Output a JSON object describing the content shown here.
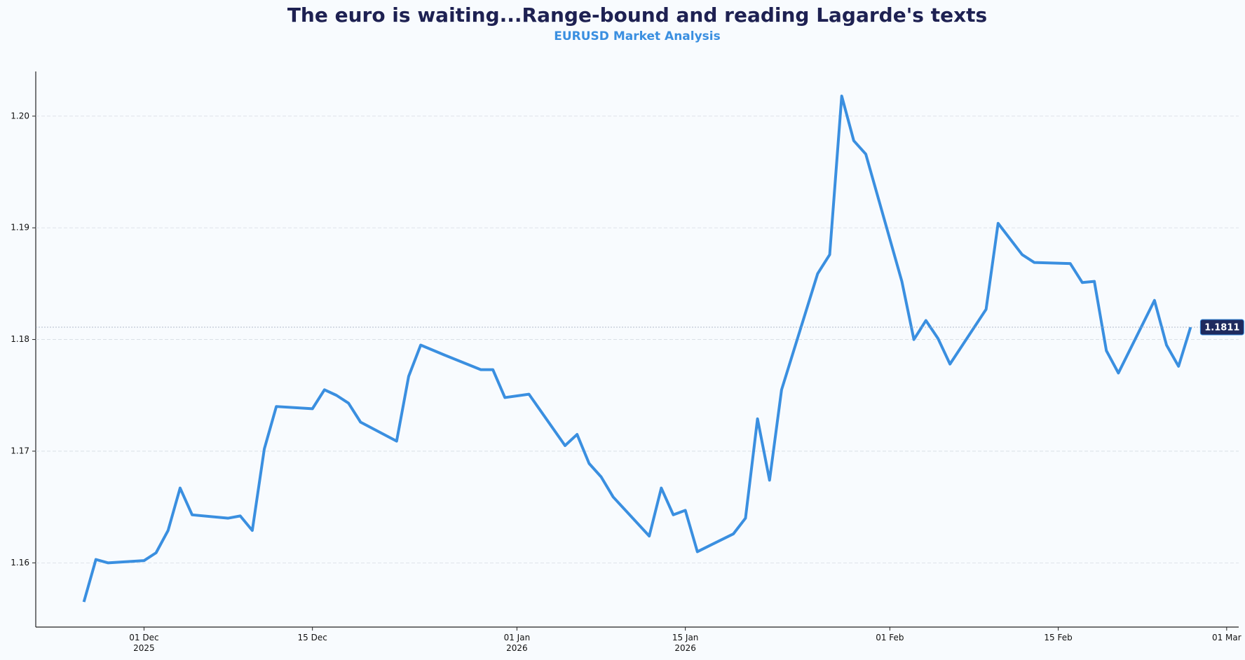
{
  "chart_data": {
    "type": "line",
    "title": "The euro is waiting...Range-bound and reading Lagarde's texts",
    "subtitle": "EURUSD Market Analysis",
    "x": [
      "2025-11-26",
      "2025-11-27",
      "2025-11-28",
      "2025-12-01",
      "2025-12-02",
      "2025-12-03",
      "2025-12-04",
      "2025-12-05",
      "2025-12-08",
      "2025-12-09",
      "2025-12-10",
      "2025-12-11",
      "2025-12-12",
      "2025-12-15",
      "2025-12-16",
      "2025-12-17",
      "2025-12-18",
      "2025-12-19",
      "2025-12-22",
      "2025-12-23",
      "2025-12-24",
      "2025-12-26",
      "2025-12-29",
      "2025-12-30",
      "2025-12-31",
      "2026-01-02",
      "2026-01-05",
      "2026-01-06",
      "2026-01-07",
      "2026-01-08",
      "2026-01-09",
      "2026-01-12",
      "2026-01-13",
      "2026-01-14",
      "2026-01-15",
      "2026-01-16",
      "2026-01-19",
      "2026-01-20",
      "2026-01-21",
      "2026-01-22",
      "2026-01-23",
      "2026-01-26",
      "2026-01-27",
      "2026-01-28",
      "2026-01-29",
      "2026-01-30",
      "2026-02-02",
      "2026-02-03",
      "2026-02-04",
      "2026-02-05",
      "2026-02-06",
      "2026-02-09",
      "2026-02-10",
      "2026-02-12",
      "2026-02-13",
      "2026-02-16",
      "2026-02-17",
      "2026-02-18",
      "2026-02-19",
      "2026-02-20",
      "2026-02-23",
      "2026-02-24",
      "2026-02-25",
      "2026-02-26"
    ],
    "series": [
      {
        "name": "EURUSD",
        "color": "#3a8fe0",
        "values": [
          1.1565,
          1.1603,
          1.16,
          1.1602,
          1.1609,
          1.1629,
          1.1667,
          1.1643,
          1.164,
          1.1642,
          1.1629,
          1.1702,
          1.174,
          1.1738,
          1.1755,
          1.175,
          1.1743,
          1.1726,
          1.1709,
          1.1767,
          1.1795,
          1.1786,
          1.1773,
          1.1773,
          1.1748,
          1.1751,
          1.1705,
          1.1715,
          1.1689,
          1.1677,
          1.1659,
          1.1624,
          1.1667,
          1.1643,
          1.1647,
          1.161,
          1.1626,
          1.164,
          1.1729,
          1.1674,
          1.1755,
          1.1859,
          1.1876,
          1.2018,
          1.1978,
          1.1966,
          1.1852,
          1.18,
          1.1817,
          1.1801,
          1.1778,
          1.1827,
          1.1904,
          1.1876,
          1.1869,
          1.1868,
          1.1851,
          1.1852,
          1.179,
          1.177,
          1.1835,
          1.1795,
          1.1776,
          1.1811
        ]
      }
    ],
    "xlim": [
      "2025-11-22",
      "2026-03-02"
    ],
    "xticks": [
      {
        "value": "2025-12-01",
        "label": "01 Dec\n2025"
      },
      {
        "value": "2025-12-15",
        "label": "15 Dec"
      },
      {
        "value": "2026-01-01",
        "label": "01 Jan\n2026"
      },
      {
        "value": "2026-01-15",
        "label": "15 Jan\n2026"
      },
      {
        "value": "2026-02-01",
        "label": "01 Feb"
      },
      {
        "value": "2026-02-15",
        "label": "15 Feb"
      },
      {
        "value": "2026-03-01",
        "label": "01 Mar"
      }
    ],
    "ylim": [
      1.15425,
      1.204
    ],
    "yticks": [
      1.16,
      1.17,
      1.18,
      1.19,
      {
        "value": 1.2,
        "label": "1.20"
      }
    ],
    "grid": true
  }
}
